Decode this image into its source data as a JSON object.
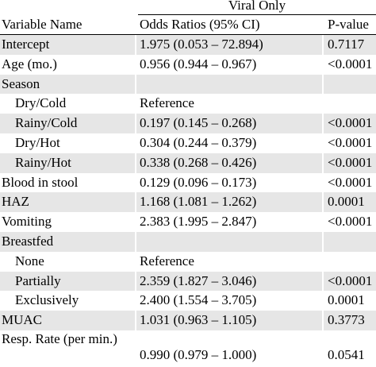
{
  "table": {
    "group_header": "Viral Only",
    "columns": [
      "Variable Name",
      "Odds Ratios (95% CI)",
      "P-value"
    ],
    "rows": [
      {
        "variable": "Intercept",
        "or": "1.975 (0.053 – 72.894)",
        "p": "0.7117",
        "indent": false,
        "shade": true
      },
      {
        "variable": "Age (mo.)",
        "or": "0.956 (0.944 – 0.967)",
        "p": "<0.0001",
        "indent": false,
        "shade": false
      },
      {
        "variable": "Season",
        "or": "",
        "p": "",
        "indent": false,
        "shade": true
      },
      {
        "variable": "Dry/Cold",
        "or": "Reference",
        "p": "",
        "indent": true,
        "shade": false
      },
      {
        "variable": "Rainy/Cold",
        "or": "0.197 (0.145 – 0.268)",
        "p": "<0.0001",
        "indent": true,
        "shade": true
      },
      {
        "variable": "Dry/Hot",
        "or": "0.304 (0.244 – 0.379)",
        "p": "<0.0001",
        "indent": true,
        "shade": false
      },
      {
        "variable": "Rainy/Hot",
        "or": "0.338 (0.268 – 0.426)",
        "p": "<0.0001",
        "indent": true,
        "shade": true
      },
      {
        "variable": "Blood in stool",
        "or": "0.129 (0.096 – 0.173)",
        "p": "<0.0001",
        "indent": false,
        "shade": false
      },
      {
        "variable": "HAZ",
        "or": "1.168 (1.081 – 1.262)",
        "p": "0.0001",
        "indent": false,
        "shade": true
      },
      {
        "variable": "Vomiting",
        "or": "2.383 (1.995 – 2.847)",
        "p": "<0.0001",
        "indent": false,
        "shade": false
      },
      {
        "variable": "Breastfed",
        "or": "",
        "p": "",
        "indent": false,
        "shade": true
      },
      {
        "variable": "None",
        "or": "Reference",
        "p": "",
        "indent": true,
        "shade": false
      },
      {
        "variable": "Partially",
        "or": "2.359 (1.827 – 3.046)",
        "p": "<0.0001",
        "indent": true,
        "shade": true
      },
      {
        "variable": "Exclusively",
        "or": "2.400 (1.554 – 3.705)",
        "p": "0.0001",
        "indent": true,
        "shade": false
      },
      {
        "variable": "MUAC",
        "or": "1.031 (0.963 – 1.105)",
        "p": "0.3773",
        "indent": false,
        "shade": true
      },
      {
        "variable": "Resp. Rate (per min.)",
        "or": "0.990 (0.979 – 1.000)",
        "p": "0.0541",
        "indent": false,
        "shade": false,
        "tall": true
      }
    ]
  }
}
